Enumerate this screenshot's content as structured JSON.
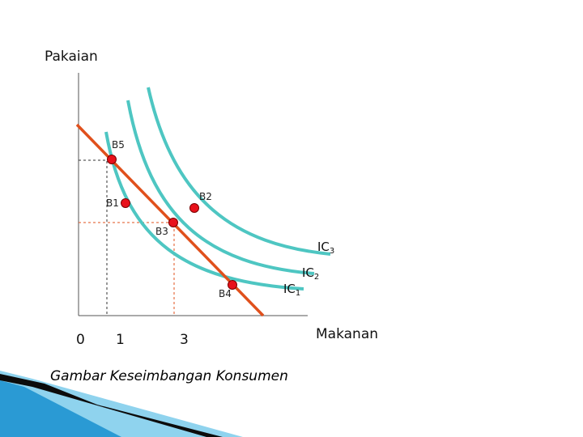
{
  "axes": {
    "y_label": "Pakaian",
    "x_label": "Makanan",
    "x_ticks": [
      "0",
      "1",
      "3"
    ]
  },
  "points": [
    "B5",
    "B2",
    "B1",
    "B3",
    "B4"
  ],
  "curves": {
    "ic1": {
      "base": "IC",
      "sub": "1"
    },
    "ic2": {
      "base": "IC",
      "sub": "2"
    },
    "ic3": {
      "base": "IC",
      "sub": "3"
    }
  },
  "caption": "Gambar Keseimbangan Konsumen",
  "colors": {
    "budget_line": "#e0501c",
    "indifference_curve": "#4ec6c2",
    "point_fill": "#e8111b",
    "guide_dark": "#333333",
    "guide_red": "#e0501c",
    "corner_blue": "#1e8fc7"
  }
}
